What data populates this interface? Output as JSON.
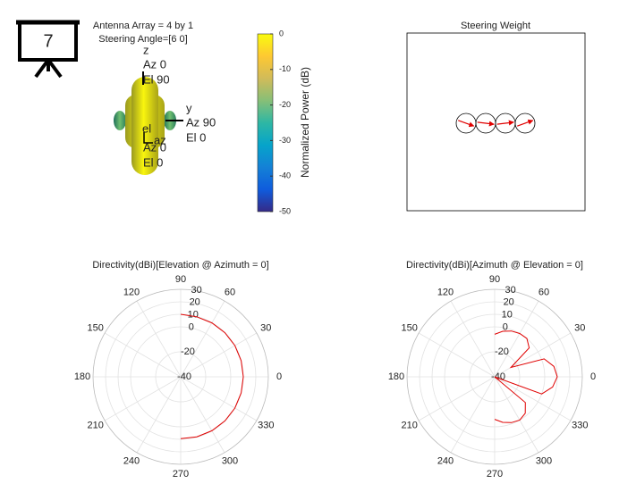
{
  "icon": {
    "label": "7"
  },
  "chart_data": [
    {
      "type": "pattern3d",
      "title": [
        "Antenna Array = 4 by 1",
        "Steering Angle=[6 0]"
      ],
      "axis_labels": {
        "z": [
          "z",
          "Az 0",
          "El 90"
        ],
        "y": [
          "y",
          "Az 90",
          "El 0"
        ],
        "x": [
          "el",
          "az",
          "Az 0",
          "El 0"
        ]
      },
      "colorbar": {
        "label": "Normalized Power (dB)",
        "clim": [
          -50,
          0
        ],
        "ticks": [
          0,
          -10,
          -20,
          -30,
          -40,
          -50
        ],
        "colormap": [
          "#352a87",
          "#0f5cdd",
          "#1481d6",
          "#06a4ca",
          "#2eb7a4",
          "#87bf77",
          "#d1bb59",
          "#fec832",
          "#f9fb0e"
        ]
      }
    },
    {
      "type": "weights",
      "title": "Steering Weight",
      "phase": [
        -20,
        -7,
        7,
        20
      ],
      "magnitude": [
        1,
        1,
        1,
        1
      ],
      "color": "#e00000"
    },
    {
      "type": "polar",
      "title": "Directivity(dBi)[Elevation @ Azimuth = 0]",
      "rlim": [
        -40,
        30
      ],
      "rticks": [
        -40,
        -20,
        0,
        10,
        20,
        30
      ],
      "thetaticks": [
        0,
        30,
        60,
        90,
        120,
        150,
        180,
        210,
        240,
        270,
        300,
        330
      ],
      "grid": true,
      "series": [
        {
          "color": "#e00000",
          "x": [
            -90,
            -75,
            -60,
            -45,
            -30,
            -15,
            0,
            15,
            30,
            45,
            60,
            75,
            90
          ],
          "values": [
            9.5,
            9.7,
            9.8,
            9.9,
            10,
            10,
            10,
            10,
            10,
            9.9,
            9.8,
            9.7,
            10
          ]
        }
      ]
    },
    {
      "type": "polar",
      "title": "Directivity(dBi)[Azimuth @ Elevation = 0]",
      "rlim": [
        -40,
        30
      ],
      "rticks": [
        -40,
        -20,
        0,
        10,
        20,
        30
      ],
      "thetaticks": [
        0,
        30,
        60,
        90,
        120,
        150,
        180,
        210,
        240,
        270,
        300,
        330
      ],
      "grid": true,
      "series": [
        {
          "color": "#e00000",
          "x": [
            -90,
            -80,
            -70,
            -60,
            -50,
            -40,
            -30,
            -20,
            -10,
            0,
            10,
            20,
            30,
            40,
            50,
            60,
            70,
            80,
            90
          ],
          "values": [
            -6,
            -3,
            -1,
            0,
            -2,
            -8,
            -40,
            0,
            7,
            10,
            8,
            2,
            -25,
            -4,
            0,
            0,
            -1,
            -3,
            -6
          ]
        }
      ]
    }
  ]
}
